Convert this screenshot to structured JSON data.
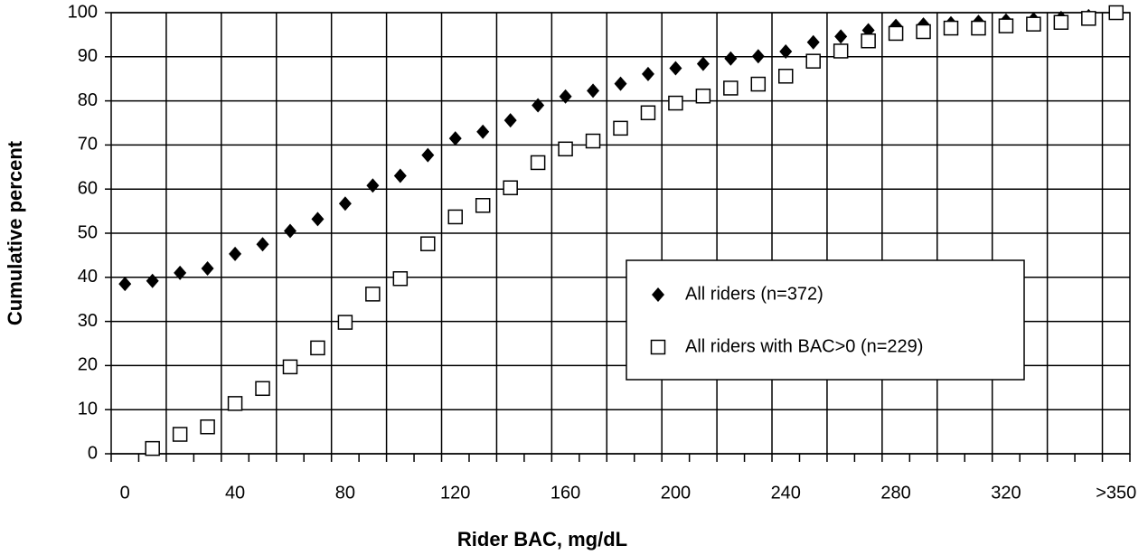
{
  "chart_data": {
    "type": "scatter",
    "xlabel": "Rider BAC, mg/dL",
    "ylabel": "Cumulative percent",
    "categories": [
      "0",
      null,
      null,
      null,
      "40",
      null,
      null,
      null,
      "80",
      null,
      null,
      null,
      "120",
      null,
      null,
      null,
      "160",
      null,
      null,
      null,
      "200",
      null,
      null,
      null,
      "240",
      null,
      null,
      null,
      "280",
      null,
      null,
      null,
      "320",
      null,
      null,
      null,
      ">350"
    ],
    "series": [
      {
        "name": "All riders (n=372)",
        "color": "#000000",
        "marker": "diamond",
        "values": [
          38.5,
          39.2,
          41,
          42,
          45.3,
          47.5,
          50.5,
          53.2,
          56.7,
          60.8,
          63,
          67.7,
          71.5,
          73,
          75.6,
          79,
          81,
          82.3,
          83.9,
          86.1,
          87.4,
          88.4,
          89.6,
          90.1,
          91.2,
          93.3,
          94.6,
          96,
          97,
          97.3,
          97.6,
          97.9,
          98.2,
          98.5,
          98.8,
          99.2,
          100
        ]
      },
      {
        "name": "All riders with BAC>0 (n=229)",
        "color": "#000000",
        "marker": "square",
        "values": [
          null,
          1.2,
          4.4,
          6.1,
          11.4,
          14.8,
          19.7,
          24,
          29.8,
          36.2,
          39.7,
          47.6,
          53.7,
          56.3,
          60.3,
          66,
          69.1,
          70.9,
          73.8,
          77.3,
          79.5,
          81.1,
          82.9,
          83.8,
          85.6,
          89,
          91.3,
          93.6,
          95.3,
          95.7,
          96.5,
          96.5,
          97,
          97.4,
          97.8,
          98.7,
          100
        ]
      }
    ],
    "ylim": [
      0,
      100
    ],
    "yticks": [
      0,
      10,
      20,
      30,
      40,
      50,
      60,
      70,
      80,
      90,
      100
    ],
    "grid": true,
    "legend": "lower right"
  }
}
